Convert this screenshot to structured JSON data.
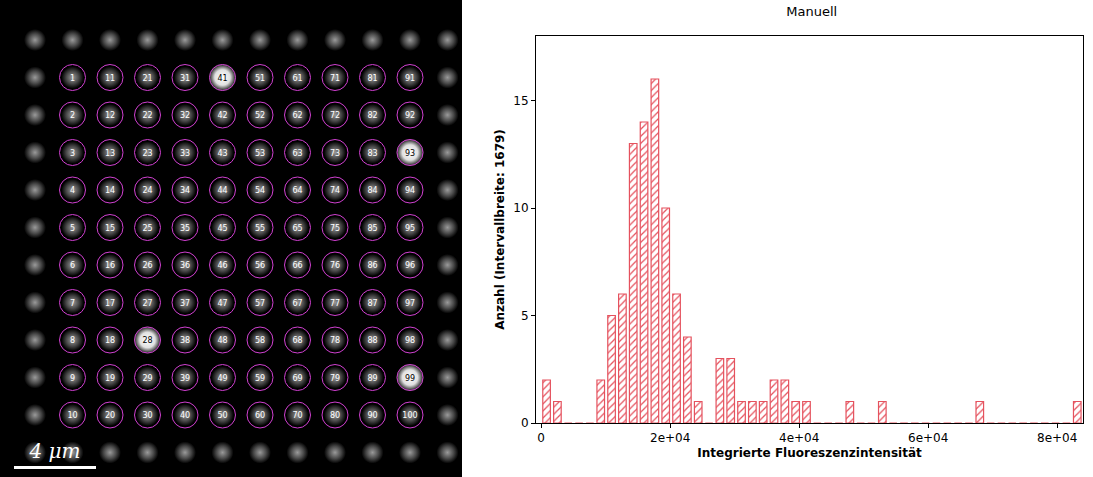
{
  "image": {
    "scale_bar": "4 μm",
    "circle_labels": [
      1,
      2,
      3,
      4,
      5,
      6,
      7,
      8,
      9,
      10,
      11,
      12,
      13,
      14,
      15,
      16,
      17,
      18,
      19,
      20,
      21,
      22,
      23,
      24,
      25,
      26,
      27,
      28,
      29,
      30,
      31,
      32,
      33,
      34,
      35,
      36,
      37,
      38,
      39,
      40,
      41,
      42,
      43,
      44,
      45,
      46,
      47,
      48,
      49,
      50,
      51,
      52,
      53,
      54,
      55,
      56,
      57,
      58,
      59,
      60,
      61,
      62,
      63,
      64,
      65,
      66,
      67,
      68,
      69,
      70,
      71,
      72,
      73,
      74,
      75,
      76,
      77,
      78,
      79,
      80,
      81,
      82,
      83,
      84,
      85,
      86,
      87,
      88,
      89,
      90,
      91,
      92,
      93,
      94,
      95,
      96,
      97,
      98,
      99,
      100
    ],
    "bright_labels": [
      41,
      28,
      93,
      99
    ]
  },
  "chart_data": {
    "type": "histogram",
    "title": "Manuell",
    "x_label": "Integrierte Fluoreszenzintensität",
    "y_label": "Anzahl (Intervallbreite: 1679)",
    "bins": [
      0,
      1679,
      3358,
      5037,
      6716,
      8395,
      10074,
      11753,
      13432,
      15111,
      16790,
      18469,
      20148,
      21827,
      23506,
      25185,
      26864,
      28543,
      30222,
      31901,
      33580,
      35259,
      36938,
      38617,
      40296,
      41975,
      43654,
      45333,
      47012,
      48691,
      50370,
      52049,
      53728,
      55407,
      57086,
      58765,
      60444,
      62123,
      63802,
      65481,
      67160,
      68839,
      70518,
      72197,
      73876,
      75555,
      77234,
      78913,
      80592,
      82271,
      83950
    ],
    "values": [
      2,
      1,
      0,
      0,
      0,
      2,
      5,
      6,
      13,
      14,
      16,
      10,
      6,
      4,
      1,
      0,
      3,
      3,
      1,
      1,
      1,
      2,
      2,
      1,
      1,
      0,
      0,
      0,
      1,
      0,
      0,
      1,
      0,
      0,
      0,
      0,
      0,
      0,
      0,
      0,
      1,
      0,
      0,
      0,
      0,
      0,
      0,
      0,
      0,
      1
    ],
    "color": "#e5525e",
    "xlim": [
      -800,
      84000
    ],
    "xticks": [
      0,
      {
        "value": 20000,
        "label": "2e+04"
      },
      {
        "value": 40000,
        "label": "4e+04"
      },
      {
        "value": 60000,
        "label": "6e+04"
      },
      {
        "value": 80000,
        "label": "8e+04"
      }
    ],
    "ylim": [
      0,
      18
    ],
    "yticks": [
      0,
      5,
      10,
      15
    ],
    "grid": false
  }
}
